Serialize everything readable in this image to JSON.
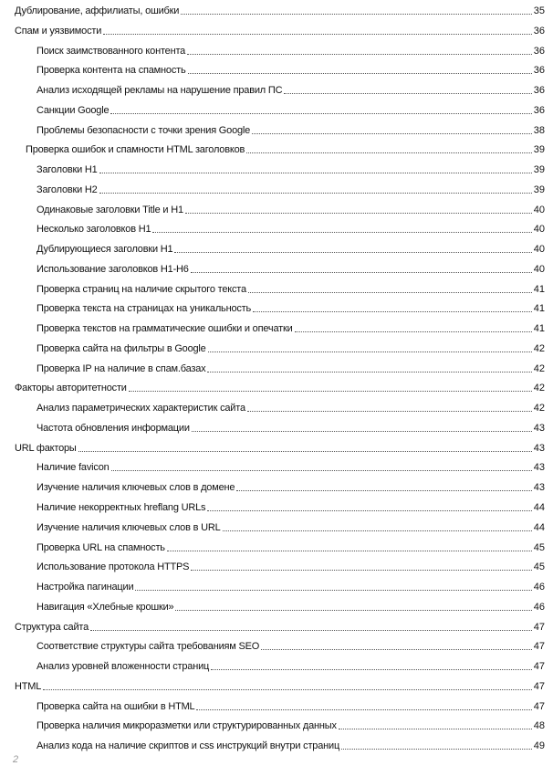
{
  "toc": [
    {
      "title": "Дублирование, аффилиаты, ошибки",
      "page": "35",
      "level": 1
    },
    {
      "title": "Спам и уязвимости",
      "page": "36",
      "level": 1
    },
    {
      "title": "Поиск заимствованного контента",
      "page": "36",
      "level": 3
    },
    {
      "title": "Проверка контента на спамность",
      "page": "36",
      "level": 3
    },
    {
      "title": "Анализ исходящей рекламы на нарушение правил ПС",
      "page": "36",
      "level": 3
    },
    {
      "title": "Санкции Google",
      "page": "36",
      "level": 3
    },
    {
      "title": "Проблемы безопасности с точки зрения Google",
      "page": "38",
      "level": 3
    },
    {
      "title": "Проверка ошибок и спамности HTML заголовков",
      "page": "39",
      "level": 2
    },
    {
      "title": "Заголовки H1",
      "page": "39",
      "level": 3
    },
    {
      "title": "Заголовки H2",
      "page": "39",
      "level": 3
    },
    {
      "title": "Одинаковые заголовки Title и H1",
      "page": "40",
      "level": 3
    },
    {
      "title": "Несколько заголовков H1",
      "page": "40",
      "level": 3
    },
    {
      "title": "Дублирующиеся заголовки H1",
      "page": "40",
      "level": 3
    },
    {
      "title": "Использование заголовков H1-H6",
      "page": "40",
      "level": 3
    },
    {
      "title": "Проверка страниц на наличие скрытого текста",
      "page": "41",
      "level": 3
    },
    {
      "title": "Проверка текста на страницах на уникальность",
      "page": "41",
      "level": 3
    },
    {
      "title": "Проверка текстов на грамматические ошибки и опечатки",
      "page": "41",
      "level": 3
    },
    {
      "title": "Проверка сайта на фильтры в Google",
      "page": "42",
      "level": 3
    },
    {
      "title": "Проверка IP на наличие в спам.базах",
      "page": "42",
      "level": 3
    },
    {
      "title": "Факторы авторитетности",
      "page": "42",
      "level": 1
    },
    {
      "title": "Анализ параметрических характеристик сайта",
      "page": "42",
      "level": 3
    },
    {
      "title": "Частота обновления информации",
      "page": "43",
      "level": 3
    },
    {
      "title": "URL факторы",
      "page": "43",
      "level": 1
    },
    {
      "title": "Наличие favicon",
      "page": "43",
      "level": 3
    },
    {
      "title": "Изучение наличия ключевых слов в домене",
      "page": "43",
      "level": 3
    },
    {
      "title": "Наличие некорректных hreflang URLs",
      "page": "44",
      "level": 3
    },
    {
      "title": "Изучение наличия ключевых слов в URL",
      "page": "44",
      "level": 3
    },
    {
      "title": "Проверка URL на спамность",
      "page": "45",
      "level": 3
    },
    {
      "title": "Использование протокола HTTPS",
      "page": "45",
      "level": 3
    },
    {
      "title": "Настройка пагинации",
      "page": "46",
      "level": 3
    },
    {
      "title": "Навигация «Хлебные крошки»",
      "page": "46",
      "level": 3
    },
    {
      "title": "Структура сайта",
      "page": "47",
      "level": 1
    },
    {
      "title": "Соответствие структуры сайта требованиям SEO",
      "page": "47",
      "level": 3
    },
    {
      "title": "Анализ уровней вложенности страниц",
      "page": "47",
      "level": 3
    },
    {
      "title": "HTML",
      "page": "47",
      "level": 1
    },
    {
      "title": "Проверка сайта на ошибки в HTML",
      "page": "47",
      "level": 3
    },
    {
      "title": "Проверка наличия микроразметки или структурированных данных",
      "page": "48",
      "level": 3
    },
    {
      "title": "Анализ кода на наличие скриптов и css инструкций внутри страниц",
      "page": "49",
      "level": 3
    }
  ],
  "footer": {
    "page_number": "2"
  }
}
